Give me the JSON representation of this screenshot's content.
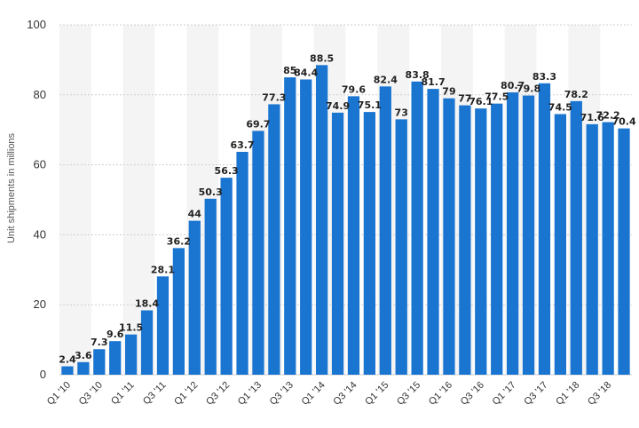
{
  "chart_data": {
    "type": "bar",
    "title": "",
    "xlabel": "",
    "ylabel": "Unit shipments in millions",
    "ylim": [
      0,
      100
    ],
    "yticks": [
      0,
      20,
      40,
      60,
      80,
      100
    ],
    "grid": "horizontal dashed",
    "bar_color": "#1a75d1",
    "band_color": "#f4f4f4",
    "categories": [
      "Q1 '10",
      "Q2 '10",
      "Q3 '10",
      "Q4 '10",
      "Q1 '11",
      "Q2 '11",
      "Q3 '11",
      "Q4 '11",
      "Q1 '12",
      "Q2 '12",
      "Q3 '12",
      "Q4 '12",
      "Q1 '13",
      "Q2 '13",
      "Q3 '13",
      "Q4 '13",
      "Q1 '14",
      "Q2 '14",
      "Q3 '14",
      "Q4 '14",
      "Q1 '15",
      "Q2 '15",
      "Q3 '15",
      "Q4 '15",
      "Q1 '16",
      "Q2 '16",
      "Q3 '16",
      "Q4 '16",
      "Q1 '17",
      "Q2 '17",
      "Q3 '17",
      "Q4 '17",
      "Q1 '18",
      "Q2 '18",
      "Q3 '18",
      "Q4 '18"
    ],
    "x_tick_labels": [
      "Q1 '10",
      "Q3 '10",
      "Q1 '11",
      "Q3 '11",
      "Q1 '12",
      "Q3 '12",
      "Q1 '13",
      "Q3 '13",
      "Q1 '14",
      "Q3 '14",
      "Q1 '15",
      "Q3 '15",
      "Q1 '16",
      "Q3 '16",
      "Q1 '17",
      "Q3 '17",
      "Q1 '18",
      "Q3 '18"
    ],
    "values": [
      2.4,
      3.6,
      7.3,
      9.6,
      11.5,
      18.4,
      28.1,
      36.2,
      44,
      50.3,
      56.3,
      63.7,
      69.7,
      77.3,
      85,
      84.4,
      88.5,
      74.9,
      79.6,
      75.1,
      82.4,
      73,
      83.8,
      81.7,
      79,
      77,
      76.1,
      77.5,
      80.7,
      79.8,
      83.3,
      74.5,
      78.2,
      71.6,
      72.2,
      70.4
    ],
    "data_labels": [
      "2.4",
      "3.6",
      "7.3",
      "9.6",
      "11.5",
      "18.4",
      "28.1",
      "36.2",
      "44",
      "50.3",
      "56.3",
      "63.7",
      "69.7",
      "77.3",
      "85",
      "84.4",
      "88.5",
      "74.9",
      "79.6",
      "75.1",
      "82.4",
      "73",
      "83.8",
      "81.7",
      "79",
      "77",
      "76.1",
      "77.5",
      "80.7",
      "79.8",
      "83.3",
      "74.5",
      "78.2",
      "71.6",
      "72.2",
      "70.4"
    ]
  }
}
